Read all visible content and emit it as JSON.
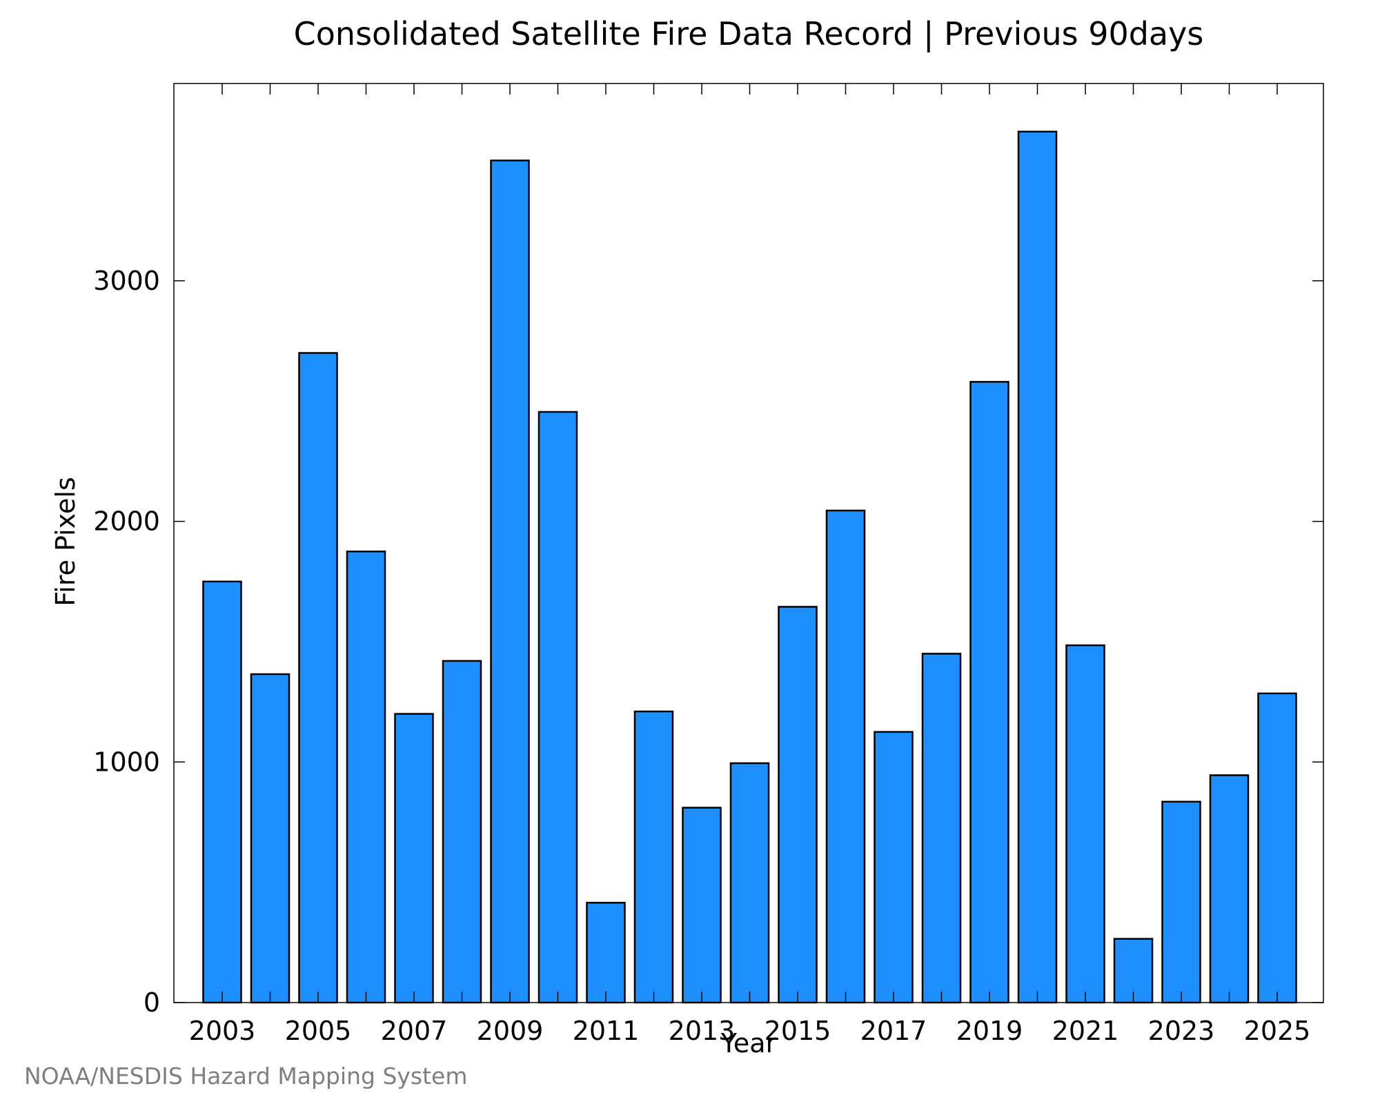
{
  "chart_data": {
    "type": "bar",
    "title": "Consolidated Satellite Fire Data Record | Previous 90days",
    "xlabel": "Year",
    "ylabel": "Fire Pixels",
    "categories": [
      "2003",
      "2004",
      "2005",
      "2006",
      "2007",
      "2008",
      "2009",
      "2010",
      "2011",
      "2012",
      "2013",
      "2014",
      "2015",
      "2016",
      "2017",
      "2018",
      "2019",
      "2020",
      "2021",
      "2022",
      "2023",
      "2024",
      "2025"
    ],
    "values": [
      1750,
      1365,
      2700,
      1875,
      1200,
      1420,
      3500,
      2455,
      415,
      1210,
      810,
      995,
      1645,
      2045,
      1125,
      1450,
      2580,
      3620,
      1485,
      265,
      835,
      945,
      1285
    ],
    "xticks": [
      "2003",
      "2005",
      "2007",
      "2009",
      "2011",
      "2013",
      "2015",
      "2017",
      "2019",
      "2021",
      "2023",
      "2025"
    ],
    "yticks": [
      "0",
      "1000",
      "2000",
      "3000"
    ],
    "ylim": [
      0,
      3820
    ],
    "bar_color": "#1e8fff",
    "edge_color": "#000000",
    "grid": false
  },
  "footer": {
    "credit": "NOAA/NESDIS Hazard Mapping System"
  }
}
